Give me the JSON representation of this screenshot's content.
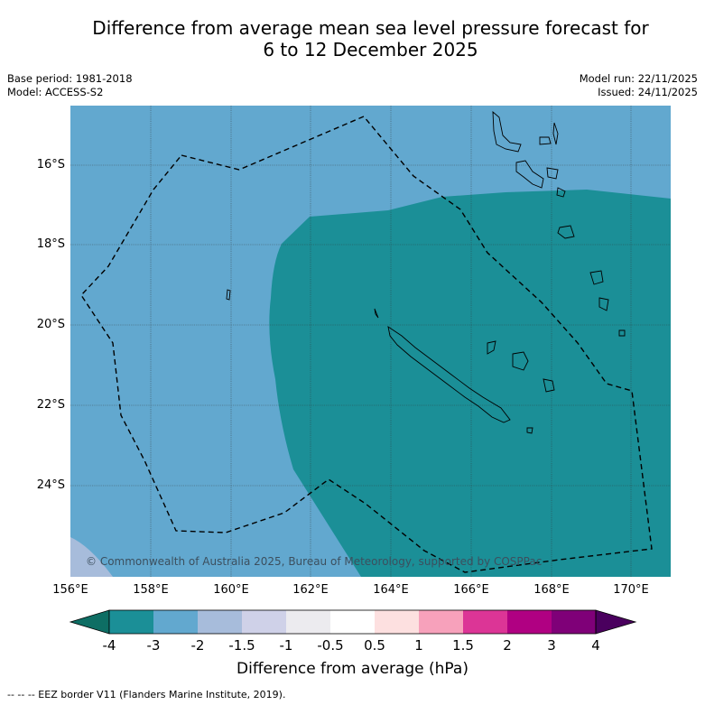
{
  "title": {
    "line1": "Difference from average mean sea level pressure forecast for",
    "line2": "6 to 12 December 2025"
  },
  "meta": {
    "base_period": "Base period: 1981-2018",
    "model": "Model: ACCESS-S2",
    "model_run": "Model run: 22/11/2025",
    "issued": "Issued: 24/11/2025"
  },
  "axes": {
    "lat_labels": [
      "16°S",
      "18°S",
      "20°S",
      "22°S",
      "24°S"
    ],
    "lon_labels": [
      "156°E",
      "158°E",
      "160°E",
      "162°E",
      "164°E",
      "166°E",
      "168°E",
      "170°E"
    ]
  },
  "copyright": "© Commonwealth of Australia 2025, Bureau of Meteorology, supported by COSPPac",
  "colorbar": {
    "ticks": [
      "-4",
      "-3",
      "-2",
      "-1.5",
      "-1",
      "-0.5",
      "0.5",
      "1",
      "1.5",
      "2",
      "3",
      "4"
    ],
    "colors": {
      "below_min": "#0e6e64",
      "bins": [
        "#1b8f97",
        "#62a8cf",
        "#a7bcdb",
        "#cfd1e8",
        "#ecebef",
        "#ffffff",
        "#fde0e0",
        "#f7a1bb",
        "#dc3596",
        "#b00082",
        "#7f0078"
      ],
      "above_max": "#4a005e"
    },
    "label": "Difference from average (hPa)"
  },
  "footer": "--  --  -- EEZ border V11 (Flanders Marine Institute, 2019)."
}
